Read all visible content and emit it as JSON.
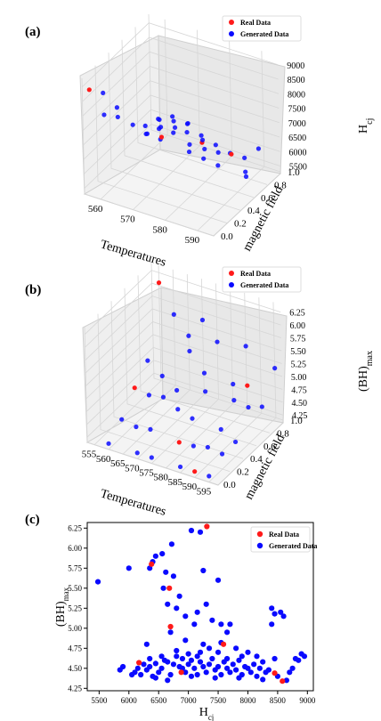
{
  "colors": {
    "real": "#ff1a1a",
    "generated": "#0a0aff",
    "pane": "#f2f2f2",
    "grid": "#d0d0d0"
  },
  "chart_data": [
    {
      "type": "scatter",
      "panel": "(a)",
      "projection": "3d",
      "legend": {
        "position": "top-right",
        "entries": [
          "Real Data",
          "Generated Data"
        ]
      },
      "axes": {
        "x": {
          "label": "Temperatures",
          "ticks": [
            "560",
            "570",
            "580",
            "590"
          ]
        },
        "y": {
          "label": "magnetic field",
          "ticks": [
            "0.0",
            "0.2",
            "0.4",
            "0.6",
            "0.8",
            "1.0"
          ]
        },
        "z": {
          "label": "H",
          "label_sub": "cj",
          "ticks": [
            "5500",
            "6000",
            "6500",
            "7000",
            "7500",
            "8000",
            "8500",
            "9000"
          ]
        }
      },
      "grid": true
    },
    {
      "type": "scatter",
      "panel": "(b)",
      "projection": "3d",
      "legend": {
        "position": "top-right",
        "entries": [
          "Real Data",
          "Generated Data"
        ]
      },
      "axes": {
        "x": {
          "label": "Temperatures",
          "ticks": [
            "555",
            "560",
            "565",
            "570",
            "575",
            "580",
            "585",
            "590",
            "595"
          ]
        },
        "y": {
          "label": "magnetic field",
          "ticks": [
            "0.0",
            "0.2",
            "0.4",
            "0.6",
            "0.8",
            "1.0"
          ]
        },
        "z": {
          "label": "(BH)",
          "label_sub": "max",
          "ticks": [
            "4.25",
            "4.50",
            "4.75",
            "5.00",
            "5.25",
            "5.50",
            "5.75",
            "6.00",
            "6.25"
          ]
        }
      },
      "grid": true
    },
    {
      "type": "scatter",
      "panel": "(c)",
      "xlabel": "H",
      "xlabel_sub": "cj",
      "ylabel": "(BH)",
      "ylabel_sub": "max",
      "xlim": [
        5300,
        9100
      ],
      "ylim": [
        4.22,
        6.32
      ],
      "xticks": [
        5500,
        6000,
        6500,
        7000,
        7500,
        8000,
        8500,
        9000
      ],
      "yticks": [
        4.25,
        4.5,
        4.75,
        5.0,
        5.25,
        5.5,
        5.75,
        6.0,
        6.25
      ],
      "ytick_labels": [
        "4.25",
        "4.50",
        "4.75",
        "5.00",
        "5.25",
        "5.50",
        "5.75",
        "6.00",
        "6.25"
      ],
      "legend": {
        "position": "top-right",
        "entries": [
          "Real Data",
          "Generated Data"
        ]
      },
      "series": [
        {
          "name": "Real Data",
          "points": [
            [
              7310,
              6.27
            ],
            [
              6380,
              5.8
            ],
            [
              6680,
              5.5
            ],
            [
              7590,
              4.8
            ],
            [
              6700,
              5.02
            ],
            [
              6170,
              4.57
            ],
            [
              6880,
              4.45
            ],
            [
              8580,
              4.34
            ],
            [
              8450,
              4.44
            ]
          ]
        },
        {
          "name": "Generated Data",
          "points": [
            [
              5480,
              5.58
            ],
            [
              6000,
              5.75
            ],
            [
              6350,
              5.75
            ],
            [
              6400,
              5.83
            ],
            [
              6450,
              5.9
            ],
            [
              6560,
              5.93
            ],
            [
              6720,
              6.05
            ],
            [
              6620,
              5.7
            ],
            [
              7050,
              6.22
            ],
            [
              7200,
              6.2
            ],
            [
              6580,
              5.5
            ],
            [
              6750,
              5.65
            ],
            [
              6850,
              5.4
            ],
            [
              7250,
              5.72
            ],
            [
              7500,
              5.6
            ],
            [
              6650,
              5.3
            ],
            [
              6800,
              5.25
            ],
            [
              6950,
              5.15
            ],
            [
              7150,
              5.2
            ],
            [
              7300,
              5.3
            ],
            [
              7100,
              5.05
            ],
            [
              6700,
              4.95
            ],
            [
              7400,
              5.1
            ],
            [
              7550,
              5.05
            ],
            [
              7650,
              4.95
            ],
            [
              7700,
              5.05
            ],
            [
              7800,
              4.75
            ],
            [
              8400,
              5.25
            ],
            [
              8450,
              5.18
            ],
            [
              8550,
              5.2
            ],
            [
              8600,
              5.15
            ],
            [
              8400,
              5.05
            ],
            [
              6300,
              4.8
            ],
            [
              6950,
              4.85
            ],
            [
              7250,
              4.8
            ],
            [
              7500,
              4.7
            ],
            [
              7200,
              4.7
            ],
            [
              7000,
              4.68
            ],
            [
              6900,
              4.62
            ],
            [
              6100,
              4.45
            ],
            [
              6150,
              4.5
            ],
            [
              6200,
              4.42
            ],
            [
              6250,
              4.55
            ],
            [
              6300,
              4.48
            ],
            [
              6350,
              4.52
            ],
            [
              6400,
              4.4
            ],
            [
              6450,
              4.56
            ],
            [
              6500,
              4.45
            ],
            [
              6550,
              4.5
            ],
            [
              6600,
              4.6
            ],
            [
              6650,
              4.58
            ],
            [
              6700,
              4.42
            ],
            [
              6750,
              4.55
            ],
            [
              6800,
              4.65
            ],
            [
              6850,
              4.52
            ],
            [
              6900,
              4.5
            ],
            [
              6950,
              4.45
            ],
            [
              7000,
              4.55
            ],
            [
              7050,
              4.6
            ],
            [
              7100,
              4.5
            ],
            [
              7150,
              4.42
            ],
            [
              7200,
              4.58
            ],
            [
              7250,
              4.52
            ],
            [
              7300,
              4.45
            ],
            [
              7350,
              4.55
            ],
            [
              7400,
              4.62
            ],
            [
              7450,
              4.48
            ],
            [
              7500,
              4.52
            ],
            [
              7550,
              4.42
            ],
            [
              7600,
              4.58
            ],
            [
              7650,
              4.5
            ],
            [
              7700,
              4.45
            ],
            [
              7750,
              4.55
            ],
            [
              7800,
              4.48
            ],
            [
              7850,
              4.6
            ],
            [
              7900,
              4.42
            ],
            [
              7950,
              4.52
            ],
            [
              8000,
              4.5
            ],
            [
              8050,
              4.45
            ],
            [
              8100,
              4.55
            ],
            [
              8150,
              4.4
            ],
            [
              8200,
              4.5
            ],
            [
              8250,
              4.58
            ],
            [
              8300,
              4.45
            ],
            [
              8350,
              4.48
            ],
            [
              8500,
              4.4
            ],
            [
              8650,
              4.35
            ],
            [
              8700,
              4.45
            ],
            [
              8750,
              4.5
            ],
            [
              8800,
              4.62
            ],
            [
              8850,
              4.6
            ],
            [
              8900,
              4.68
            ],
            [
              8950,
              4.65
            ],
            [
              8000,
              4.7
            ],
            [
              7900,
              4.65
            ],
            [
              6050,
              4.42
            ],
            [
              5900,
              4.52
            ],
            [
              5850,
              4.48
            ],
            [
              6450,
              4.38
            ],
            [
              6650,
              4.35
            ],
            [
              7050,
              4.4
            ],
            [
              7450,
              4.38
            ],
            [
              7850,
              4.38
            ],
            [
              8250,
              4.36
            ],
            [
              6350,
              4.62
            ],
            [
              6550,
              4.65
            ],
            [
              7150,
              4.65
            ],
            [
              7650,
              4.62
            ],
            [
              8450,
              4.62
            ],
            [
              8150,
              4.65
            ],
            [
              6800,
              4.72
            ],
            [
              7350,
              4.75
            ],
            [
              7550,
              4.82
            ]
          ]
        }
      ]
    }
  ]
}
